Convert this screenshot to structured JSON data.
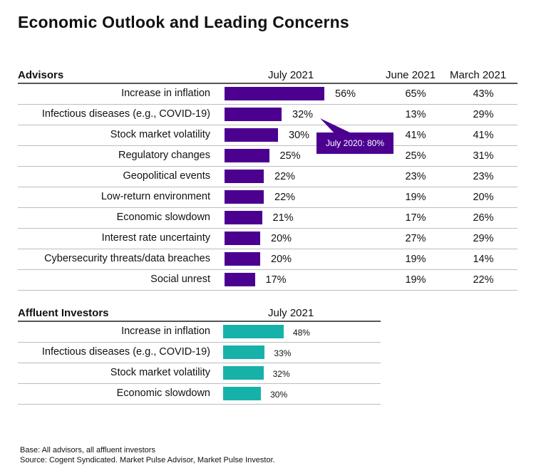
{
  "title": "Economic Outlook and Leading Concerns",
  "colors": {
    "advisors_bar": "#4b0090",
    "investors_bar": "#16b2aa",
    "callout": "#4b0090"
  },
  "advisors": {
    "section_label": "Advisors",
    "col_july": "July 2021",
    "col_june": "June 2021",
    "col_march": "March 2021",
    "callout": "July 2020: 80%"
  },
  "investors": {
    "section_label": "Affluent Investors",
    "col_july": "July 2021"
  },
  "chart_data": [
    {
      "type": "bar",
      "title": "Advisors",
      "orientation": "horizontal",
      "categories": [
        "Increase in inflation",
        "Infectious diseases (e.g., COVID-19)",
        "Stock market volatility",
        "Regulatory changes",
        "Geopolitical events",
        "Low-return environment",
        "Economic slowdown",
        "Interest rate uncertainty",
        "Cybersecurity threats/data breaches",
        "Social unrest"
      ],
      "series": [
        {
          "name": "July 2021",
          "values": [
            56,
            32,
            30,
            25,
            22,
            22,
            21,
            20,
            20,
            17
          ]
        },
        {
          "name": "June 2021",
          "values": [
            65,
            13,
            41,
            25,
            23,
            19,
            17,
            27,
            19,
            19
          ]
        },
        {
          "name": "March 2021",
          "values": [
            43,
            29,
            41,
            31,
            23,
            20,
            26,
            29,
            14,
            22
          ]
        }
      ],
      "labels": {
        "July 2021": [
          "56%",
          "32%",
          "30%",
          "25%",
          "22%",
          "22%",
          "21%",
          "20%",
          "20%",
          "17%"
        ],
        "June 2021": [
          "65%",
          "13%",
          "41%",
          "25%",
          "23%",
          "19%",
          "17%",
          "27%",
          "19%",
          "19%"
        ],
        "March 2021": [
          "43%",
          "29%",
          "41%",
          "31%",
          "23%",
          "20%",
          "26%",
          "29%",
          "14%",
          "22%"
        ]
      },
      "annotation": "July 2020: 80%",
      "annotation_target": "Infectious diseases (e.g., COVID-19)"
    },
    {
      "type": "bar",
      "title": "Affluent Investors",
      "orientation": "horizontal",
      "categories": [
        "Increase in inflation",
        "Infectious diseases (e.g., COVID-19)",
        "Stock market volatility",
        "Economic slowdown"
      ],
      "series": [
        {
          "name": "July 2021",
          "values": [
            48,
            33,
            32,
            30
          ]
        }
      ],
      "labels": {
        "July 2021": [
          "48%",
          "33%",
          "32%",
          "30%"
        ]
      }
    }
  ],
  "footnotes": {
    "base": "Base: All advisors, all affluent investors",
    "source": "Source: Cogent Syndicated. Market Pulse Advisor, Market Pulse Investor."
  }
}
